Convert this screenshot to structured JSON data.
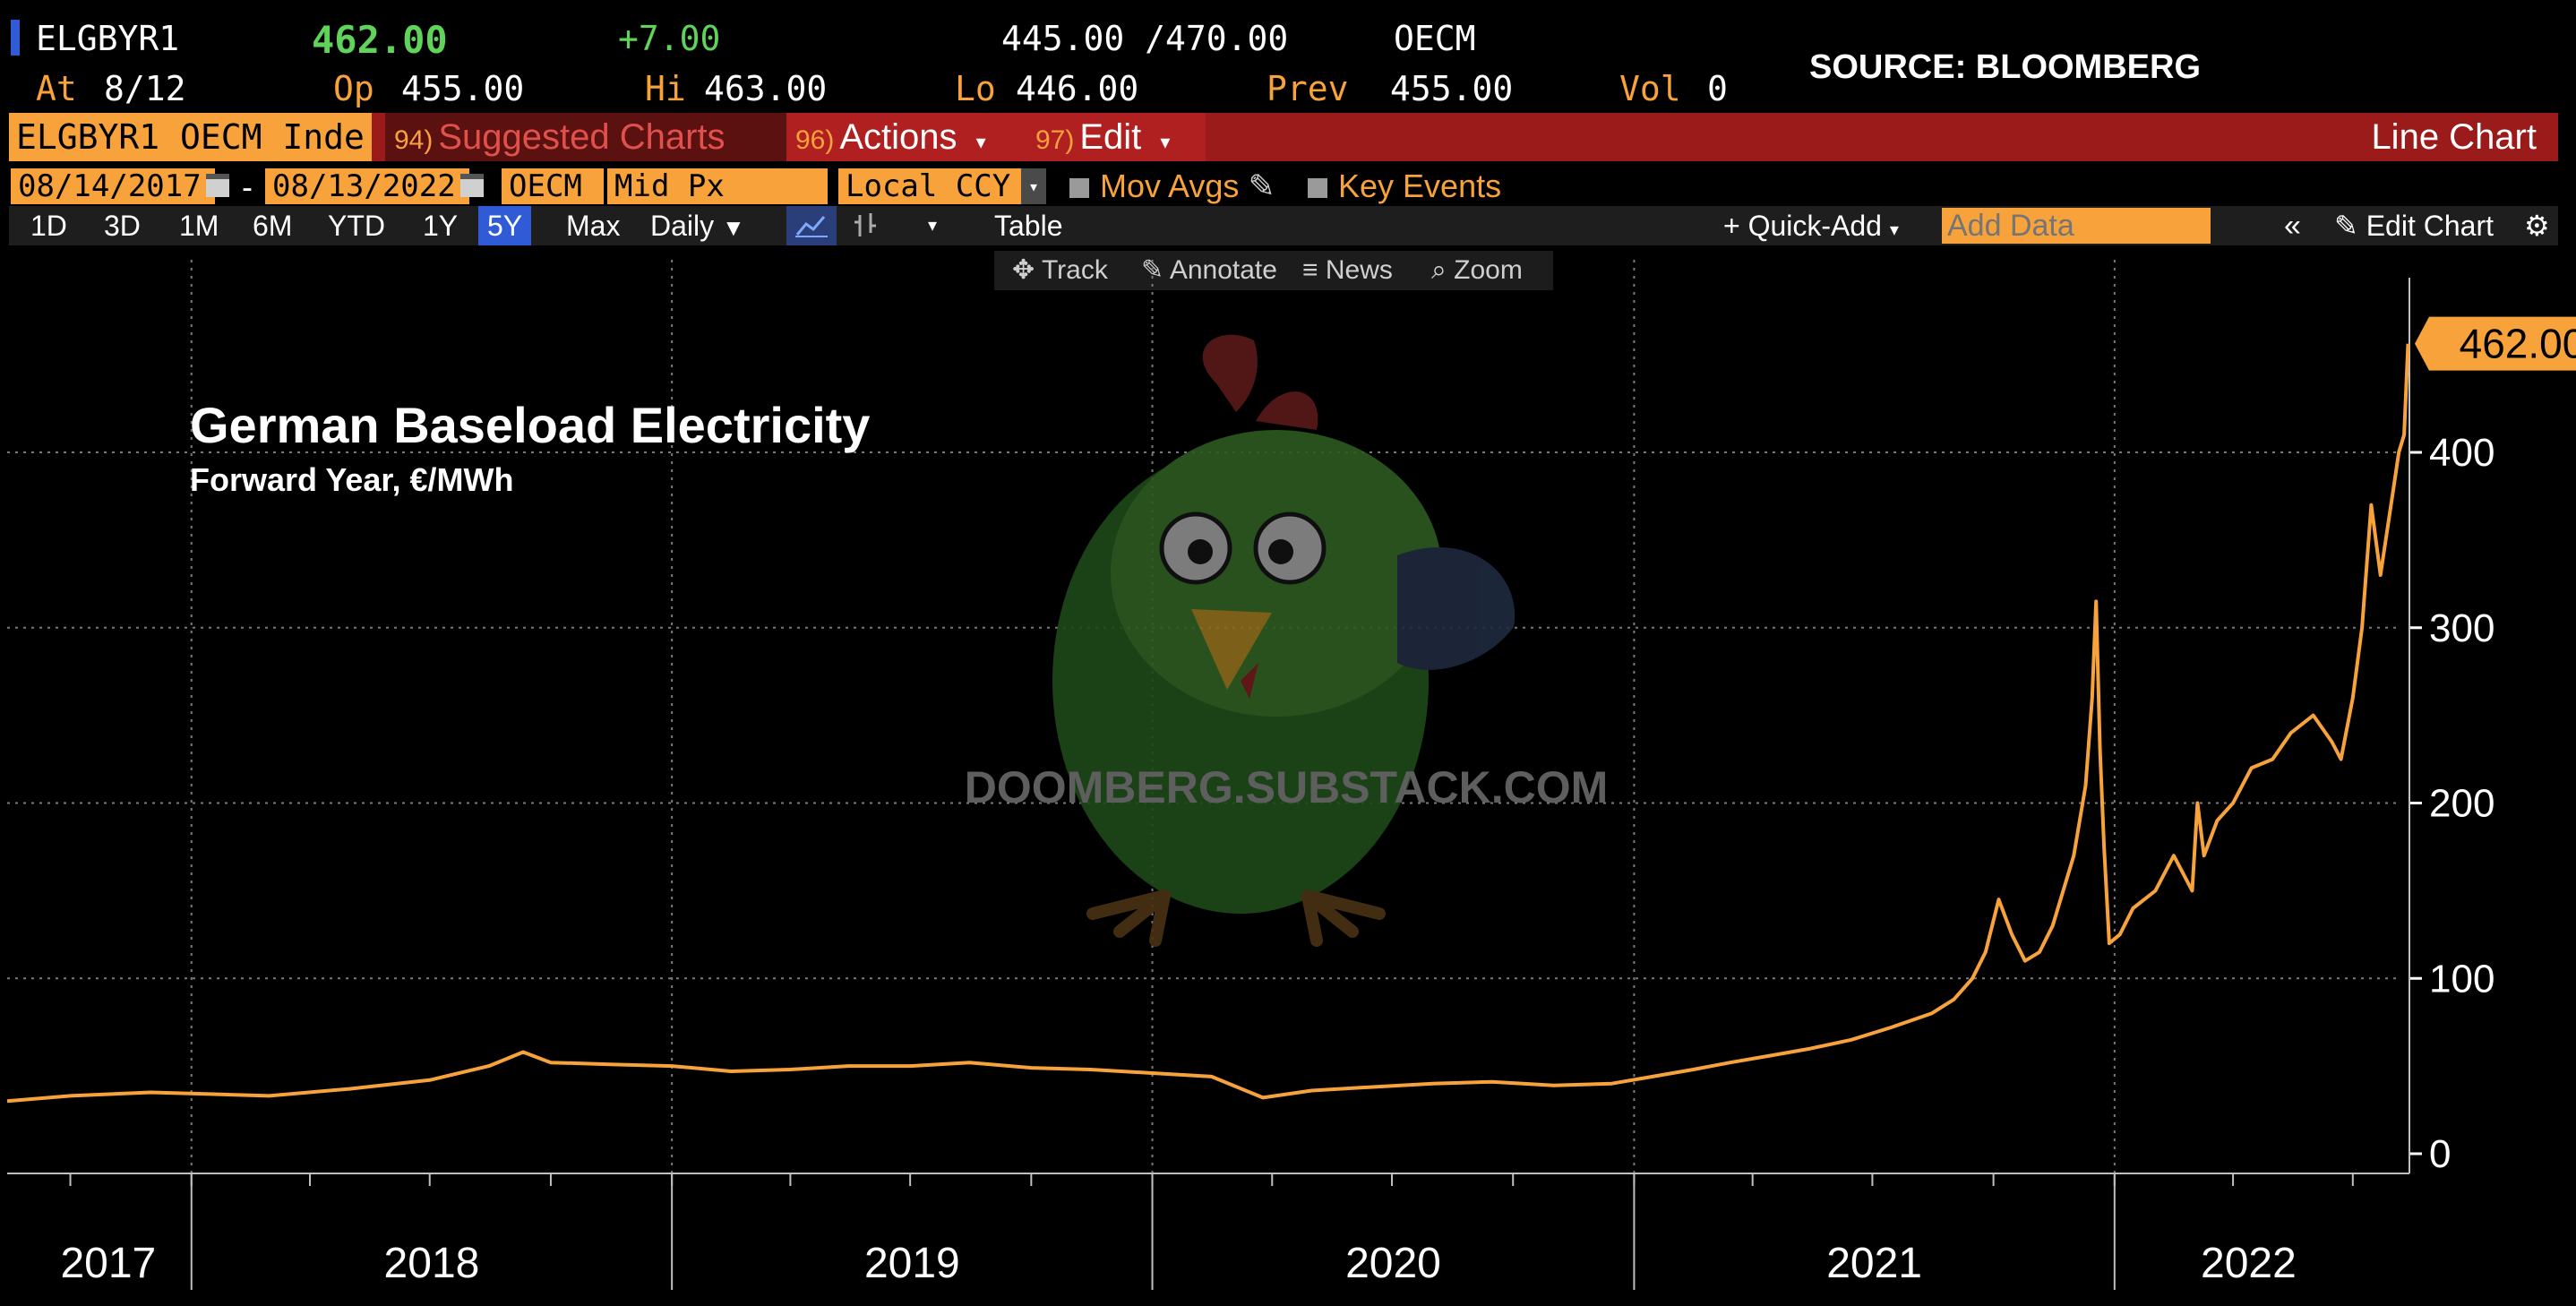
{
  "quote": {
    "ticker": "ELGBYR1",
    "last": "462.00",
    "change": "+7.00",
    "bid_ask": "445.00 /470.00",
    "exchange": "OECM",
    "at_label": "At",
    "at_value": "8/12",
    "op_label": "Op",
    "op_value": "455.00",
    "hi_label": "Hi",
    "hi_value": "463.00",
    "lo_label": "Lo",
    "lo_value": "446.00",
    "prev_label": "Prev",
    "prev_value": "455.00",
    "vol_label": "Vol",
    "vol_value": "0",
    "source": "SOURCE: BLOOMBERG"
  },
  "toolbar": {
    "security": "ELGBYR1 OECM Inde",
    "suggested_num": "94)",
    "suggested": "Suggested Charts",
    "actions_num": "96)",
    "actions": "Actions",
    "edit_num": "97)",
    "edit": "Edit",
    "chart_type": "Line Chart"
  },
  "range": {
    "start": "08/14/2017",
    "dash": "-",
    "end": "08/13/2022",
    "source": "OECM",
    "price": "Mid Px",
    "currency": "Local CCY",
    "mov_avgs": "Mov Avgs",
    "key_events": "Key Events"
  },
  "periods": {
    "items": [
      "1D",
      "3D",
      "1M",
      "6M",
      "YTD",
      "1Y",
      "5Y",
      "Max"
    ],
    "active": "5Y",
    "frequency": "Daily",
    "table": "Table",
    "quick_add": "+ Quick-Add",
    "add_data_placeholder": "Add Data",
    "edit_chart": "Edit Chart"
  },
  "tools": {
    "track": "Track",
    "annotate": "Annotate",
    "news": "News",
    "zoom": "Zoom"
  },
  "watermark": "DOOMBERG.SUBSTACK.COM",
  "colors": {
    "line": "#f7a23b",
    "brand_orange": "#f7a23b",
    "toolbar_red": "#9b1a1a",
    "active_blue": "#2f5bd6",
    "up_green": "#5fd35a"
  },
  "chart_data": {
    "type": "line",
    "title": "German Baseload Electricity",
    "subtitle": "Forward Year, €/MWh",
    "last_value_label": "462.00",
    "ylim": [
      0,
      470
    ],
    "yticks": [
      0,
      100,
      200,
      300,
      400
    ],
    "ytick_labels": [
      "0",
      "100",
      "200",
      "300",
      "400"
    ],
    "xlim": [
      "2017-08-14",
      "2022-08-13"
    ],
    "xtick_labels": [
      "2017",
      "2018",
      "2019",
      "2020",
      "2021",
      "2022"
    ],
    "grid": true,
    "x": [
      "2017-08-14",
      "2017-10-01",
      "2017-12-01",
      "2018-01-15",
      "2018-03-01",
      "2018-05-01",
      "2018-07-01",
      "2018-08-15",
      "2018-09-10",
      "2018-10-01",
      "2018-11-15",
      "2019-01-01",
      "2019-02-15",
      "2019-04-01",
      "2019-05-15",
      "2019-07-01",
      "2019-08-15",
      "2019-10-01",
      "2019-11-15",
      "2020-01-01",
      "2020-02-15",
      "2020-03-25",
      "2020-05-01",
      "2020-06-15",
      "2020-08-01",
      "2020-09-15",
      "2020-11-01",
      "2020-12-15",
      "2021-01-15",
      "2021-02-15",
      "2021-03-15",
      "2021-04-15",
      "2021-05-15",
      "2021-06-15",
      "2021-07-15",
      "2021-08-15",
      "2021-09-01",
      "2021-09-15",
      "2021-09-25",
      "2021-10-05",
      "2021-10-15",
      "2021-10-25",
      "2021-11-05",
      "2021-11-15",
      "2021-12-01",
      "2021-12-10",
      "2021-12-15",
      "2021-12-18",
      "2021-12-21",
      "2021-12-24",
      "2021-12-28",
      "2022-01-05",
      "2022-01-15",
      "2022-02-01",
      "2022-02-15",
      "2022-03-01",
      "2022-03-05",
      "2022-03-10",
      "2022-03-20",
      "2022-04-01",
      "2022-04-15",
      "2022-05-01",
      "2022-05-15",
      "2022-06-01",
      "2022-06-15",
      "2022-06-22",
      "2022-07-01",
      "2022-07-08",
      "2022-07-15",
      "2022-07-22",
      "2022-08-01",
      "2022-08-05",
      "2022-08-09",
      "2022-08-12"
    ],
    "values": [
      30,
      33,
      35,
      34,
      33,
      37,
      42,
      50,
      58,
      52,
      51,
      50,
      47,
      48,
      50,
      50,
      52,
      49,
      48,
      46,
      44,
      32,
      36,
      38,
      40,
      41,
      39,
      40,
      44,
      48,
      52,
      56,
      60,
      65,
      72,
      80,
      88,
      100,
      115,
      145,
      125,
      110,
      115,
      130,
      170,
      210,
      260,
      315,
      230,
      175,
      120,
      125,
      140,
      150,
      170,
      150,
      200,
      170,
      190,
      200,
      220,
      225,
      240,
      250,
      235,
      225,
      260,
      300,
      370,
      330,
      380,
      400,
      410,
      462
    ]
  }
}
